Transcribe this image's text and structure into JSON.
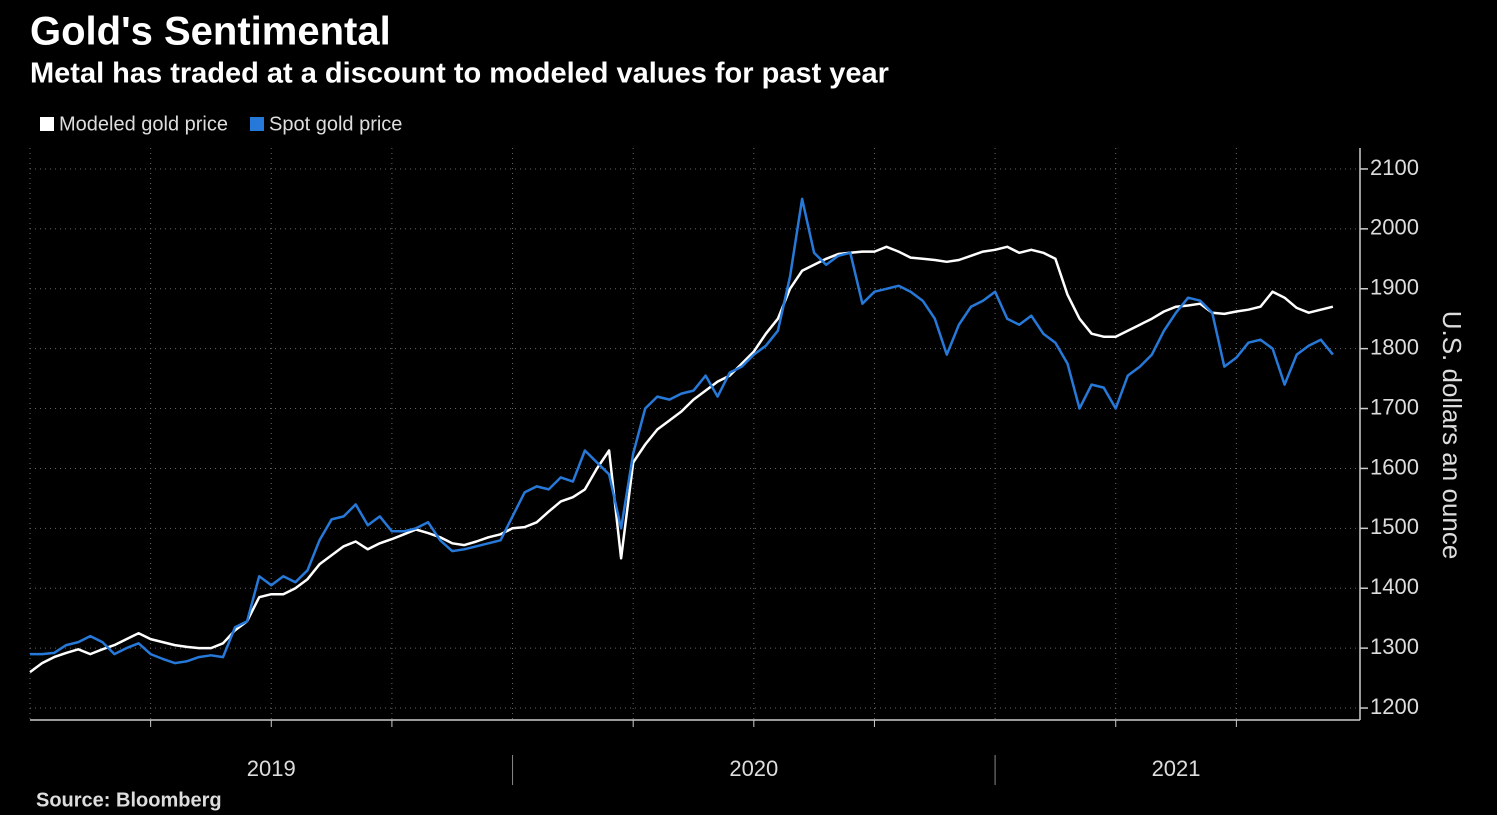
{
  "chart_data": {
    "type": "line",
    "title": "Gold's Sentimental",
    "subtitle": "Metal has traded at a discount to modeled values for past year",
    "y_label": "U.S. dollars an ounce",
    "source": "Source: Bloomberg",
    "x": [
      2019,
      2019.025,
      2019.05,
      2019.075,
      2019.1,
      2019.125,
      2019.15,
      2019.175,
      2019.2,
      2019.225,
      2019.25,
      2019.275,
      2019.3,
      2019.325,
      2019.35,
      2019.375,
      2019.4,
      2019.425,
      2019.45,
      2019.475,
      2019.5,
      2019.525,
      2019.55,
      2019.575,
      2019.6,
      2019.625,
      2019.65,
      2019.675,
      2019.7,
      2019.725,
      2019.75,
      2019.775,
      2019.8,
      2019.825,
      2019.85,
      2019.875,
      2019.9,
      2019.925,
      2019.95,
      2019.975,
      2020,
      2020.025,
      2020.05,
      2020.075,
      2020.1,
      2020.125,
      2020.15,
      2020.175,
      2020.2,
      2020.225,
      2020.25,
      2020.275,
      2020.3,
      2020.325,
      2020.35,
      2020.375,
      2020.4,
      2020.425,
      2020.45,
      2020.475,
      2020.5,
      2020.525,
      2020.55,
      2020.575,
      2020.6,
      2020.625,
      2020.65,
      2020.675,
      2020.7,
      2020.725,
      2020.75,
      2020.775,
      2020.8,
      2020.825,
      2020.85,
      2020.875,
      2020.9,
      2020.925,
      2020.95,
      2020.975,
      2021,
      2021.025,
      2021.05,
      2021.075,
      2021.1,
      2021.125,
      2021.15,
      2021.175,
      2021.2,
      2021.225,
      2021.25,
      2021.275,
      2021.3,
      2021.325,
      2021.35,
      2021.375,
      2021.4,
      2021.425,
      2021.45,
      2021.475,
      2021.5,
      2021.525,
      2021.55,
      2021.575,
      2021.6,
      2021.625,
      2021.65,
      2021.675,
      2021.7
    ],
    "series": [
      {
        "name": "Modeled gold price",
        "color": "#ffffff",
        "values": [
          1260,
          1275,
          1285,
          1292,
          1298,
          1290,
          1298,
          1305,
          1315,
          1325,
          1315,
          1310,
          1305,
          1302,
          1300,
          1300,
          1308,
          1330,
          1345,
          1385,
          1390,
          1390,
          1400,
          1415,
          1440,
          1455,
          1470,
          1478,
          1465,
          1475,
          1482,
          1490,
          1498,
          1492,
          1485,
          1475,
          1472,
          1478,
          1485,
          1490,
          1500,
          1502,
          1510,
          1528,
          1545,
          1552,
          1565,
          1600,
          1630,
          1450,
          1610,
          1640,
          1665,
          1680,
          1695,
          1715,
          1730,
          1745,
          1755,
          1775,
          1795,
          1825,
          1850,
          1900,
          1930,
          1940,
          1950,
          1958,
          1960,
          1962,
          1962,
          1970,
          1962,
          1952,
          1950,
          1948,
          1945,
          1948,
          1955,
          1962,
          1965,
          1970,
          1960,
          1965,
          1960,
          1950,
          1890,
          1850,
          1825,
          1820,
          1820,
          1830,
          1840,
          1850,
          1862,
          1870,
          1872,
          1875,
          1860,
          1858,
          1862,
          1865,
          1870,
          1895,
          1885,
          1868,
          1860,
          1865,
          1870
        ]
      },
      {
        "name": "Spot gold price",
        "color": "#2679d8",
        "values": [
          1290,
          1290,
          1292,
          1305,
          1310,
          1320,
          1310,
          1290,
          1300,
          1308,
          1290,
          1282,
          1275,
          1278,
          1285,
          1288,
          1285,
          1335,
          1345,
          1420,
          1405,
          1420,
          1410,
          1430,
          1480,
          1515,
          1520,
          1540,
          1505,
          1520,
          1495,
          1495,
          1500,
          1510,
          1480,
          1462,
          1465,
          1470,
          1475,
          1480,
          1520,
          1560,
          1570,
          1565,
          1585,
          1578,
          1630,
          1610,
          1590,
          1500,
          1625,
          1700,
          1720,
          1715,
          1725,
          1730,
          1755,
          1720,
          1760,
          1770,
          1790,
          1805,
          1830,
          1920,
          2050,
          1960,
          1940,
          1955,
          1960,
          1875,
          1895,
          1900,
          1905,
          1895,
          1880,
          1850,
          1790,
          1840,
          1870,
          1880,
          1895,
          1850,
          1840,
          1855,
          1825,
          1810,
          1775,
          1700,
          1740,
          1735,
          1700,
          1755,
          1770,
          1790,
          1830,
          1860,
          1885,
          1880,
          1860,
          1770,
          1785,
          1810,
          1815,
          1800,
          1740,
          1790,
          1805,
          1815,
          1790
        ]
      }
    ],
    "xlim": [
      2019,
      2021.75
    ],
    "xticks": [
      {
        "value": 2019,
        "label": "2019"
      },
      {
        "value": 2020,
        "label": "2020"
      },
      {
        "value": 2021,
        "label": "2021"
      }
    ],
    "xgrid": [
      2019.25,
      2019.5,
      2019.75,
      2020.25,
      2020.5,
      2020.75,
      2021.25,
      2021.5
    ],
    "ylim": [
      1180,
      2135
    ],
    "yticks": [
      1200,
      1300,
      1400,
      1500,
      1600,
      1700,
      1800,
      1900,
      2000,
      2100
    ],
    "grid": true,
    "legend": "top-left"
  }
}
